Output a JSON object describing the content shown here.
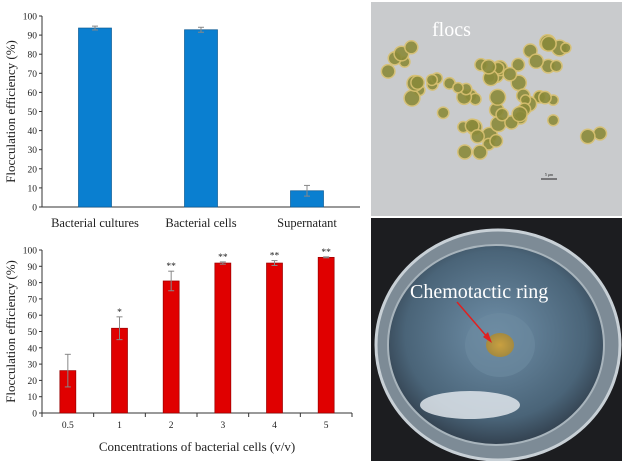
{
  "chart_data": [
    {
      "type": "bar",
      "title": "",
      "categories": [
        "Bacterial cultures",
        "Bacterial cells",
        "Supernatant"
      ],
      "values": [
        93.7,
        92.8,
        8.5
      ],
      "errors": [
        1.0,
        1.3,
        2.8
      ],
      "xlabel": "",
      "ylabel": "Flocculation efficiency (%)",
      "ylim": [
        0,
        100
      ],
      "yticks": [
        "0",
        "10",
        "20",
        "30",
        "40",
        "50",
        "60",
        "70",
        "80",
        "90",
        "100"
      ],
      "color": "#0a7fd0",
      "grid": false
    },
    {
      "type": "bar",
      "title": "",
      "categories": [
        "0.5",
        "1",
        "2",
        "3",
        "4",
        "5"
      ],
      "values": [
        26,
        52,
        81,
        92,
        92,
        95.5
      ],
      "errors": [
        10,
        7,
        6,
        0.7,
        1.5,
        0.3
      ],
      "significance": [
        "",
        "*",
        "**",
        "**",
        "**",
        "**"
      ],
      "xlabel": "Concentrations of bacterial cells (v/v)",
      "ylabel": "Flocculation efficiency (%)",
      "ylim": [
        0,
        100
      ],
      "yticks": [
        "0",
        "10",
        "20",
        "30",
        "40",
        "50",
        "60",
        "70",
        "80",
        "90",
        "100"
      ],
      "color": "#e00000",
      "grid": false
    }
  ],
  "photos": {
    "micrograph": {
      "label": "flocs",
      "scale_bar": "5 μm"
    },
    "petri_dish": {
      "label": "Chemotactic ring",
      "arrow_color": "#e02020"
    }
  }
}
